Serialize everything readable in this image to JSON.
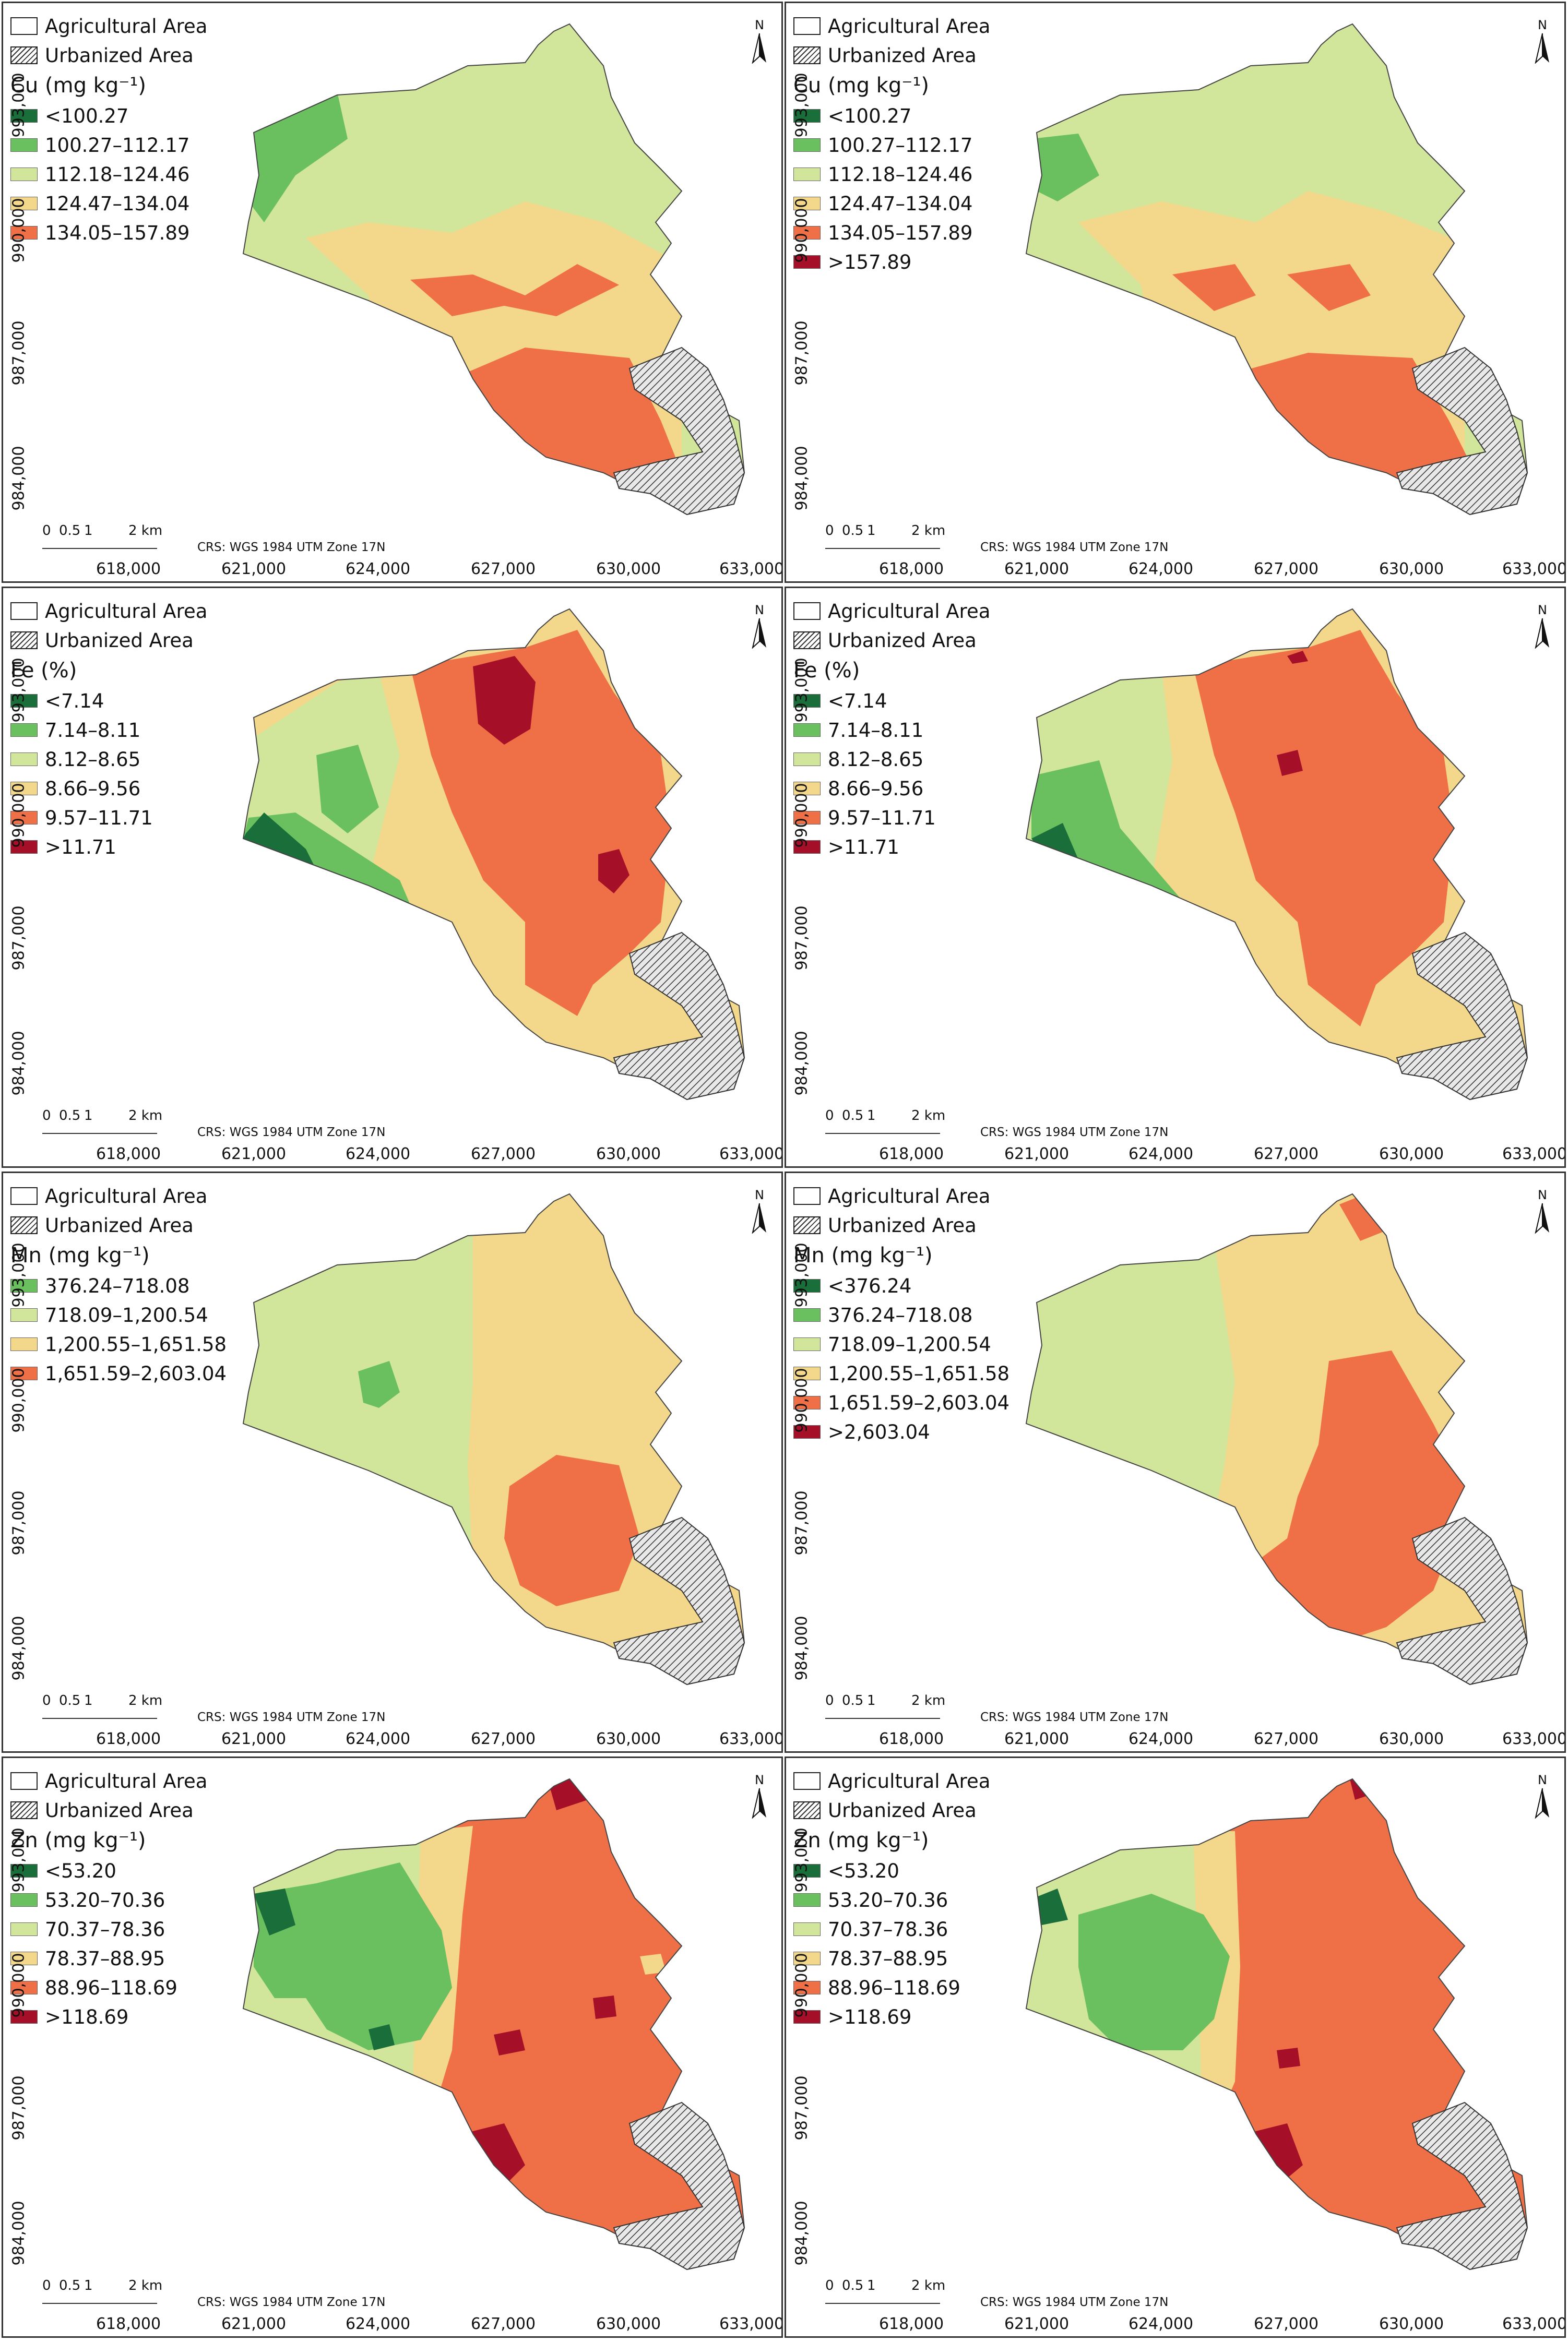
{
  "legend_common": {
    "agricultural": "Agricultural Area",
    "urbanized": "Urbanized Area"
  },
  "scale": {
    "l0": "0",
    "l1": "0.5",
    "l2": "1",
    "l3": "2 km"
  },
  "crs": "CRS: WGS 1984 UTM Zone 17N",
  "north": "N",
  "x_ticks": [
    "618,000",
    "621,000",
    "624,000",
    "627,000",
    "630,000",
    "633,000"
  ],
  "y_ticks": [
    "993,000",
    "990,000",
    "987,000",
    "984,000"
  ],
  "colors": {
    "c1": "#1a6e3a",
    "c2": "#6abf5e",
    "c3": "#d2e69b",
    "c4": "#f3d78a",
    "c5": "#ef7047",
    "c6": "#a50f28",
    "urban": "hatched"
  },
  "panels": [
    {
      "title": "Cu (mg kg⁻¹)",
      "classes": [
        {
          "label": "<100.27",
          "color": "#1a6e3a"
        },
        {
          "label": "100.27–112.17",
          "color": "#6abf5e"
        },
        {
          "label": "112.18–124.46",
          "color": "#d2e69b"
        },
        {
          "label": "124.47–134.04",
          "color": "#f3d78a"
        },
        {
          "label": "134.05–157.89",
          "color": "#ef7047"
        }
      ]
    },
    {
      "title": "Cu (mg kg⁻¹)",
      "classes": [
        {
          "label": "<100.27",
          "color": "#1a6e3a"
        },
        {
          "label": "100.27–112.17",
          "color": "#6abf5e"
        },
        {
          "label": "112.18–124.46",
          "color": "#d2e69b"
        },
        {
          "label": "124.47–134.04",
          "color": "#f3d78a"
        },
        {
          "label": "134.05–157.89",
          "color": "#ef7047"
        },
        {
          "label": ">157.89",
          "color": "#a50f28"
        }
      ]
    },
    {
      "title": "Fe (%)",
      "classes": [
        {
          "label": "<7.14",
          "color": "#1a6e3a"
        },
        {
          "label": "7.14–8.11",
          "color": "#6abf5e"
        },
        {
          "label": "8.12–8.65",
          "color": "#d2e69b"
        },
        {
          "label": "8.66–9.56",
          "color": "#f3d78a"
        },
        {
          "label": "9.57–11.71",
          "color": "#ef7047"
        },
        {
          "label": ">11.71",
          "color": "#a50f28"
        }
      ]
    },
    {
      "title": "Fe (%)",
      "classes": [
        {
          "label": "<7.14",
          "color": "#1a6e3a"
        },
        {
          "label": "7.14–8.11",
          "color": "#6abf5e"
        },
        {
          "label": "8.12–8.65",
          "color": "#d2e69b"
        },
        {
          "label": "8.66–9.56",
          "color": "#f3d78a"
        },
        {
          "label": "9.57–11.71",
          "color": "#ef7047"
        },
        {
          "label": ">11.71",
          "color": "#a50f28"
        }
      ]
    },
    {
      "title": "Mn (mg kg⁻¹)",
      "classes": [
        {
          "label": "376.24–718.08",
          "color": "#6abf5e"
        },
        {
          "label": "718.09–1,200.54",
          "color": "#d2e69b"
        },
        {
          "label": "1,200.55–1,651.58",
          "color": "#f3d78a"
        },
        {
          "label": "1,651.59–2,603.04",
          "color": "#ef7047"
        }
      ]
    },
    {
      "title": "Mn (mg kg⁻¹)",
      "classes": [
        {
          "label": "<376.24",
          "color": "#1a6e3a"
        },
        {
          "label": "376.24–718.08",
          "color": "#6abf5e"
        },
        {
          "label": "718.09–1,200.54",
          "color": "#d2e69b"
        },
        {
          "label": "1,200.55–1,651.58",
          "color": "#f3d78a"
        },
        {
          "label": "1,651.59–2,603.04",
          "color": "#ef7047"
        },
        {
          "label": ">2,603.04",
          "color": "#a50f28"
        }
      ]
    },
    {
      "title": "Zn (mg kg⁻¹)",
      "classes": [
        {
          "label": "<53.20",
          "color": "#1a6e3a"
        },
        {
          "label": "53.20–70.36",
          "color": "#6abf5e"
        },
        {
          "label": "70.37–78.36",
          "color": "#d2e69b"
        },
        {
          "label": "78.37–88.95",
          "color": "#f3d78a"
        },
        {
          "label": "88.96–118.69",
          "color": "#ef7047"
        },
        {
          "label": ">118.69",
          "color": "#a50f28"
        }
      ]
    },
    {
      "title": "Zn (mg kg⁻¹)",
      "classes": [
        {
          "label": "<53.20",
          "color": "#1a6e3a"
        },
        {
          "label": "53.20–70.36",
          "color": "#6abf5e"
        },
        {
          "label": "70.37–78.36",
          "color": "#d2e69b"
        },
        {
          "label": "78.37–88.95",
          "color": "#f3d78a"
        },
        {
          "label": "88.96–118.69",
          "color": "#ef7047"
        },
        {
          "label": ">118.69",
          "color": "#a50f28"
        }
      ]
    }
  ]
}
